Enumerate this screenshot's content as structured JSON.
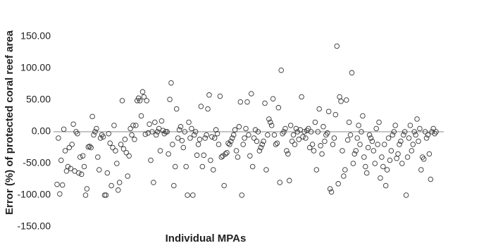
{
  "chart_data": {
    "type": "scatter",
    "y_label": "Error (%) of protected coral reef area",
    "x_label": "Individual MPAs",
    "ylim": [
      -150,
      150
    ],
    "yticks": [
      {
        "value": -150,
        "label": "-150.00"
      },
      {
        "value": -100,
        "label": "-100.00"
      },
      {
        "value": -50,
        "label": "-50.00"
      },
      {
        "value": 0,
        "label": "0.00"
      },
      {
        "value": 50,
        "label": "50.00"
      },
      {
        "value": 100,
        "label": "100.00"
      },
      {
        "value": 150,
        "label": "150.00"
      }
    ],
    "color": "#333333",
    "values": [
      -83,
      -10,
      -98,
      -45,
      -84,
      4,
      -30,
      -62,
      -55,
      -25,
      -58,
      -20,
      12,
      -62,
      0,
      -3,
      -65,
      -40,
      -67,
      -38,
      -55,
      -100,
      -90,
      -24,
      -23,
      -25,
      24,
      -5,
      0,
      5,
      -40,
      -60,
      -10,
      -5,
      -8,
      -100,
      -100,
      -65,
      -3,
      -18,
      -85,
      -25,
      10,
      -30,
      -50,
      -92,
      -80,
      -20,
      49,
      -27,
      -12,
      -33,
      -70,
      -38,
      5,
      -5,
      10,
      -12,
      10,
      49,
      53,
      49,
      25,
      63,
      55,
      -4,
      49,
      -2,
      12,
      -45,
      0,
      -80,
      15,
      -5,
      0,
      5,
      -30,
      17,
      2,
      -3,
      0,
      0,
      -35,
      51,
      77,
      -20,
      -85,
      -55,
      36,
      -10,
      3,
      8,
      -14,
      -25,
      0,
      -55,
      -100,
      15,
      -10,
      5,
      -100,
      -5,
      0,
      -37,
      -20,
      -12,
      40,
      -55,
      -37,
      -10,
      -5,
      36,
      58,
      -45,
      -8,
      -60,
      -10,
      3,
      -3,
      -20,
      56,
      -40,
      -38,
      -85,
      -35,
      -33,
      -18,
      -20,
      -15,
      -10,
      -5,
      3,
      -30,
      -40,
      8,
      47,
      -100,
      -20,
      -10,
      5,
      47,
      -5,
      -38,
      60,
      -55,
      -10,
      3,
      -15,
      0,
      -30,
      -25,
      -20,
      -15,
      45,
      -60,
      -5,
      20,
      15,
      10,
      52,
      -5,
      -20,
      -18,
      38,
      -80,
      97,
      -3,
      0,
      5,
      -30,
      -35,
      -77,
      10,
      -15,
      -5,
      -20,
      5,
      0,
      -12,
      3,
      55,
      -8,
      0,
      -10,
      2,
      5,
      -25,
      0,
      -20,
      -30,
      15,
      -60,
      0,
      36,
      -22,
      -35,
      8,
      -15,
      -5,
      -2,
      32,
      -90,
      -95,
      -20,
      -10,
      27,
      135,
      -82,
      55,
      48,
      -30,
      -70,
      -60,
      50,
      -13,
      15,
      -5,
      93,
      -50,
      -35,
      -30,
      -10,
      10,
      -20,
      0,
      25,
      -40,
      -55,
      -65,
      -25,
      -5,
      -10,
      -15,
      -30,
      -50,
      5,
      -20,
      15,
      -73,
      -40,
      -55,
      -20,
      -85,
      -60,
      -10,
      -45,
      -30,
      -5,
      0,
      10,
      -42,
      -35,
      -20,
      -15,
      -50,
      -5,
      0,
      -100,
      -40,
      -10,
      10,
      -30,
      -20,
      0,
      -5,
      20,
      -15,
      5,
      -60,
      -40,
      -43,
      0,
      -10,
      -5,
      -35,
      -75,
      0,
      5,
      -3,
      0
    ]
  }
}
